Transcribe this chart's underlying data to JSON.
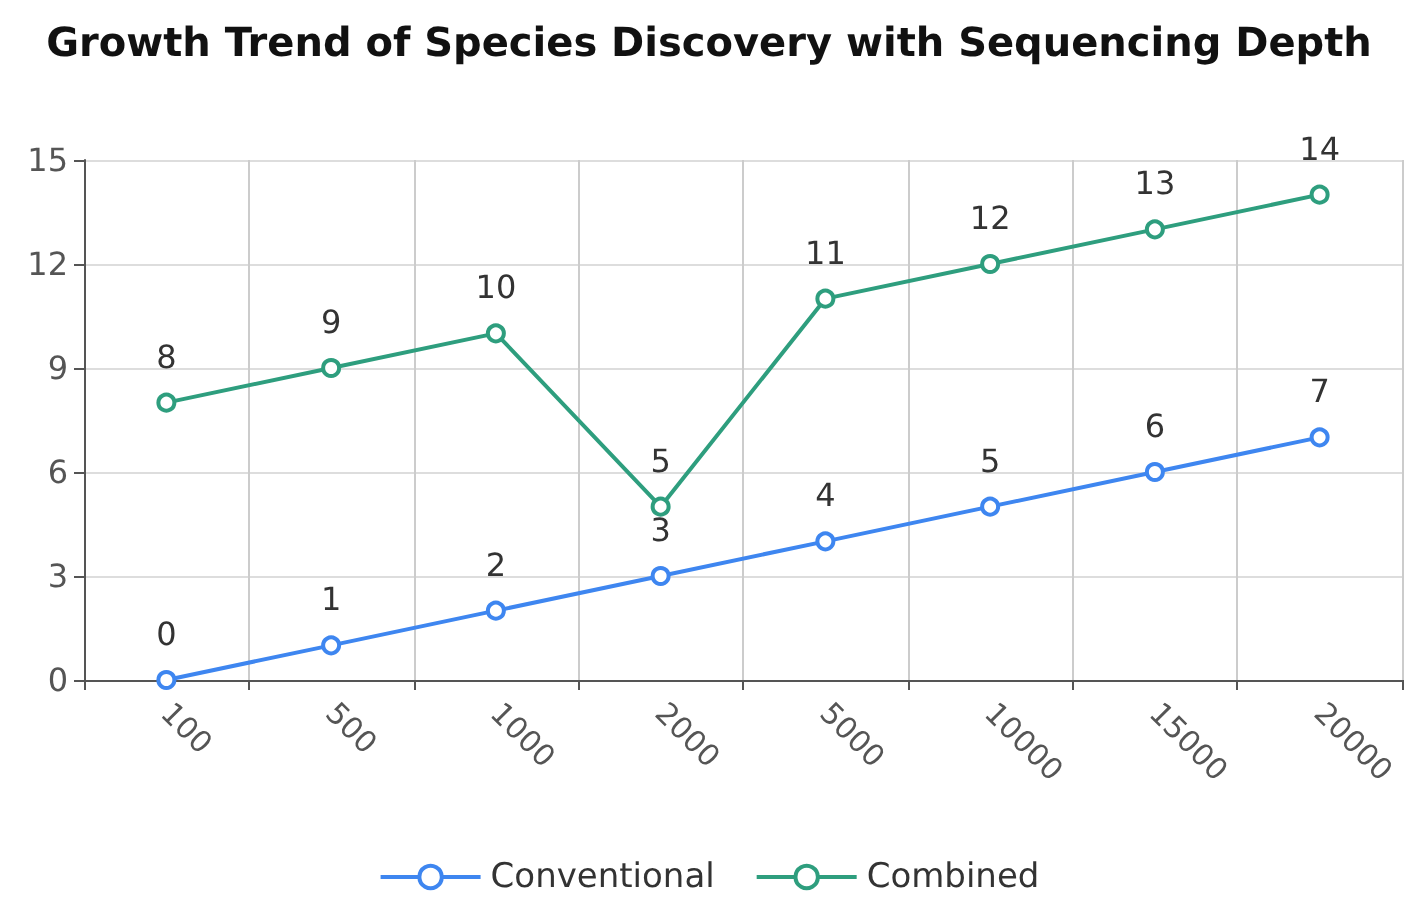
{
  "chart_data": {
    "type": "line",
    "title": "Growth Trend of Species Discovery with Sequencing Depth",
    "categories": [
      "100",
      "500",
      "1000",
      "2000",
      "5000",
      "10000",
      "15000",
      "20000"
    ],
    "series": [
      {
        "name": "Conventional",
        "color": "#3e86f0",
        "values": [
          0,
          1,
          2,
          3,
          4,
          5,
          6,
          7
        ]
      },
      {
        "name": "Combined",
        "color": "#2e9e7e",
        "values": [
          8,
          9,
          10,
          5,
          11,
          12,
          13,
          14
        ]
      }
    ],
    "ylim": [
      0,
      15
    ],
    "yticks": [
      0,
      3,
      6,
      9,
      12,
      15
    ],
    "grid": true,
    "legend": "bottom",
    "marker": "circle",
    "line_style": "solid",
    "data_labels": true
  }
}
